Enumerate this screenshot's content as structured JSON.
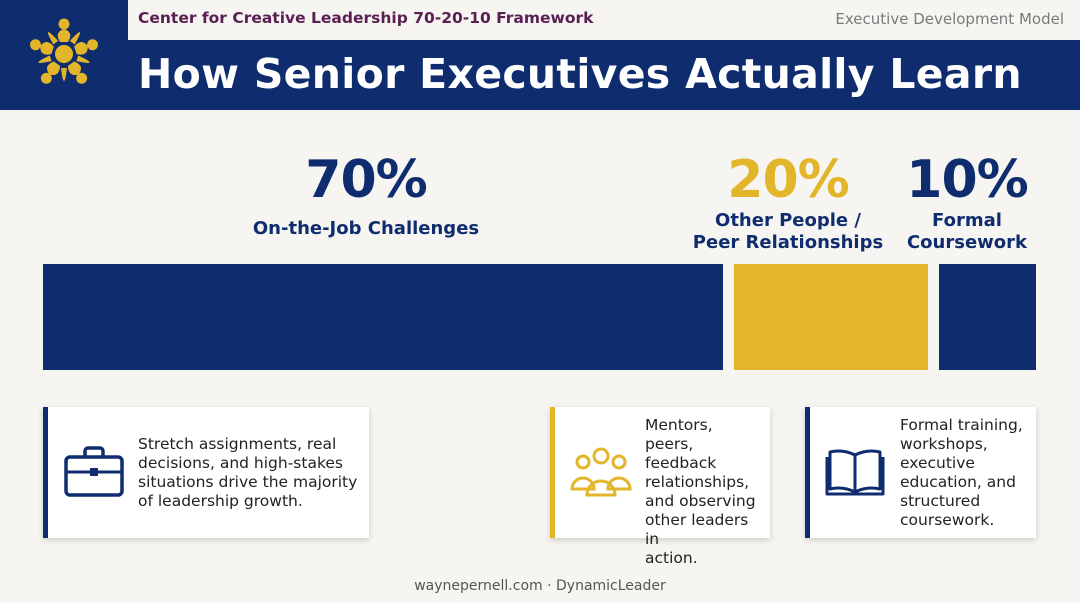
{
  "header": {
    "framework": "Center for Creative Leadership 70-20-10 Framework",
    "model": "Executive Development Model",
    "title": "How Senior Executives Actually Learn"
  },
  "colors": {
    "navy": "#0f2d6e",
    "gold": "#e3b52a",
    "plum": "#5a1f52",
    "background": "#f7f5f1"
  },
  "chart_data": {
    "type": "bar",
    "orientation": "horizontal-stacked",
    "categories": [
      "On-the-Job Challenges",
      "Other People / Peer Relationships",
      "Formal Coursework"
    ],
    "values": [
      70,
      20,
      10
    ],
    "value_labels": [
      "70%",
      "20%",
      "10%"
    ],
    "colors": [
      "#0f2d6e",
      "#e3b52a",
      "#0f2d6e"
    ],
    "title": "How Senior Executives Actually Learn",
    "xlabel": "",
    "ylabel": "",
    "grid": false,
    "legend": "none"
  },
  "segments": [
    {
      "percent": "70%",
      "label_line1": "On-the-Job Challenges",
      "label_line2": "",
      "icon": "briefcase-icon",
      "description": [
        "Stretch assignments, real",
        "decisions, and high-stakes",
        "situations drive the majority",
        "of leadership growth."
      ]
    },
    {
      "percent": "20%",
      "label_line1": "Other People /",
      "label_line2": "Peer Relationships",
      "icon": "people-group-icon",
      "description": [
        "Mentors, peers,",
        "feedback",
        "relationships,",
        "and observing",
        "other leaders in",
        "action."
      ]
    },
    {
      "percent": "10%",
      "label_line1": "Formal",
      "label_line2": "Coursework",
      "icon": "open-book-icon",
      "description": [
        "Formal training,",
        "workshops,",
        "executive",
        "education, and",
        "structured",
        "coursework."
      ]
    }
  ],
  "footer": "waynepernell.com · DynamicLeader"
}
